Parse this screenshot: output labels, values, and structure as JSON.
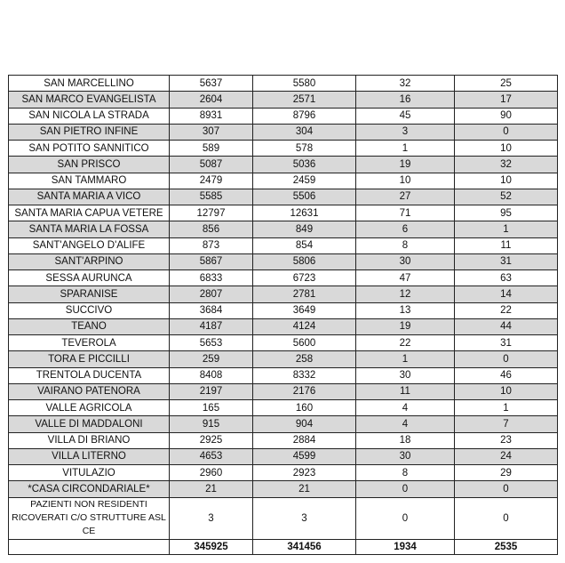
{
  "table": {
    "rows": [
      [
        "SAN MARCELLINO",
        "5637",
        "5580",
        "32",
        "25"
      ],
      [
        "SAN MARCO EVANGELISTA",
        "2604",
        "2571",
        "16",
        "17"
      ],
      [
        "SAN NICOLA LA STRADA",
        "8931",
        "8796",
        "45",
        "90"
      ],
      [
        "SAN PIETRO INFINE",
        "307",
        "304",
        "3",
        "0"
      ],
      [
        "SAN POTITO SANNITICO",
        "589",
        "578",
        "1",
        "10"
      ],
      [
        "SAN PRISCO",
        "5087",
        "5036",
        "19",
        "32"
      ],
      [
        "SAN TAMMARO",
        "2479",
        "2459",
        "10",
        "10"
      ],
      [
        "SANTA MARIA A VICO",
        "5585",
        "5506",
        "27",
        "52"
      ],
      [
        "SANTA MARIA CAPUA VETERE",
        "12797",
        "12631",
        "71",
        "95"
      ],
      [
        "SANTA MARIA LA FOSSA",
        "856",
        "849",
        "6",
        "1"
      ],
      [
        "SANT'ANGELO D'ALIFE",
        "873",
        "854",
        "8",
        "11"
      ],
      [
        "SANT'ARPINO",
        "5867",
        "5806",
        "30",
        "31"
      ],
      [
        "SESSA AURUNCA",
        "6833",
        "6723",
        "47",
        "63"
      ],
      [
        "SPARANISE",
        "2807",
        "2781",
        "12",
        "14"
      ],
      [
        "SUCCIVO",
        "3684",
        "3649",
        "13",
        "22"
      ],
      [
        "TEANO",
        "4187",
        "4124",
        "19",
        "44"
      ],
      [
        "TEVEROLA",
        "5653",
        "5600",
        "22",
        "31"
      ],
      [
        "TORA E PICCILLI",
        "259",
        "258",
        "1",
        "0"
      ],
      [
        "TRENTOLA DUCENTA",
        "8408",
        "8332",
        "30",
        "46"
      ],
      [
        "VAIRANO PATENORA",
        "2197",
        "2176",
        "11",
        "10"
      ],
      [
        "VALLE AGRICOLA",
        "165",
        "160",
        "4",
        "1"
      ],
      [
        "VALLE DI MADDALONI",
        "915",
        "904",
        "4",
        "7"
      ],
      [
        "VILLA DI BRIANO",
        "2925",
        "2884",
        "18",
        "23"
      ],
      [
        "VILLA LITERNO",
        "4653",
        "4599",
        "30",
        "24"
      ],
      [
        "VITULAZIO",
        "2960",
        "2923",
        "8",
        "29"
      ],
      [
        "*CASA CIRCONDARIALE*",
        "21",
        "21",
        "0",
        "0"
      ],
      [
        "PAZIENTI NON RESIDENTI RICOVERATI C/O STRUTTURE ASL CE",
        "3",
        "3",
        "0",
        "0"
      ]
    ],
    "total": [
      "",
      "345925",
      "341456",
      "1934",
      "2535"
    ],
    "shade_color": "#d9d9d9"
  }
}
